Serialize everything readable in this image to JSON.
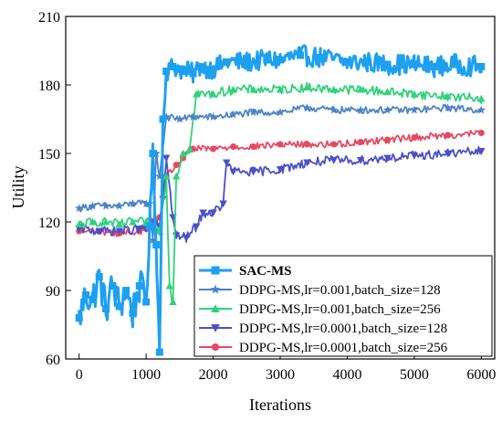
{
  "chart_data": {
    "type": "line",
    "title": "",
    "xlabel": "Iterations",
    "ylabel": "Utility",
    "xlim": [
      -200,
      6200
    ],
    "ylim": [
      60,
      210
    ],
    "xticks": [
      0,
      1000,
      2000,
      3000,
      4000,
      5000,
      6000
    ],
    "yticks": [
      60,
      90,
      120,
      150,
      180,
      210
    ],
    "xtick_labels": [
      "0",
      "1000",
      "2000",
      "3000",
      "4000",
      "5000",
      "6000"
    ],
    "ytick_labels": [
      "60",
      "90",
      "120",
      "150",
      "180",
      "210"
    ],
    "grid": false,
    "legend_position": "bottom-right",
    "series": [
      {
        "name": "SAC-MS",
        "color": "#1ea0f0",
        "marker": "square",
        "points": [
          [
            0,
            78
          ],
          [
            100,
            88
          ],
          [
            200,
            86
          ],
          [
            300,
            96
          ],
          [
            400,
            82
          ],
          [
            500,
            92
          ],
          [
            600,
            83
          ],
          [
            700,
            90
          ],
          [
            800,
            80
          ],
          [
            900,
            92
          ],
          [
            1000,
            85
          ],
          [
            1050,
            118
          ],
          [
            1100,
            150
          ],
          [
            1150,
            110
          ],
          [
            1200,
            63
          ],
          [
            1250,
            165
          ],
          [
            1300,
            186
          ],
          [
            1400,
            188
          ],
          [
            1500,
            187
          ],
          [
            1600,
            186
          ],
          [
            1700,
            185
          ],
          [
            1800,
            188
          ],
          [
            2000,
            187
          ],
          [
            2200,
            190
          ],
          [
            2500,
            190
          ],
          [
            2800,
            191
          ],
          [
            3000,
            191
          ],
          [
            3300,
            193
          ],
          [
            3600,
            192
          ],
          [
            4000,
            190
          ],
          [
            4300,
            190
          ],
          [
            4600,
            189
          ],
          [
            5000,
            189
          ],
          [
            5300,
            188
          ],
          [
            5600,
            189
          ],
          [
            6000,
            188
          ]
        ]
      },
      {
        "name": "DDPG-MS,lr=0.001,batch_size=128",
        "color": "#4b82c8",
        "marker": "star",
        "points": [
          [
            0,
            126
          ],
          [
            200,
            127
          ],
          [
            400,
            127
          ],
          [
            600,
            127
          ],
          [
            800,
            128
          ],
          [
            1000,
            128
          ],
          [
            1050,
            128
          ],
          [
            1100,
            112
          ],
          [
            1150,
            150
          ],
          [
            1200,
            140
          ],
          [
            1300,
            166
          ],
          [
            1500,
            165
          ],
          [
            1700,
            166
          ],
          [
            2000,
            166
          ],
          [
            2300,
            167
          ],
          [
            2600,
            168
          ],
          [
            3000,
            168
          ],
          [
            3400,
            170
          ],
          [
            3800,
            169
          ],
          [
            4200,
            169
          ],
          [
            4600,
            169
          ],
          [
            5000,
            169
          ],
          [
            5500,
            170
          ],
          [
            6000,
            169
          ]
        ]
      },
      {
        "name": "DDPG-MS,lr=0.001,batch_size=256",
        "color": "#2fd27a",
        "marker": "triangle-up",
        "points": [
          [
            0,
            119
          ],
          [
            200,
            120
          ],
          [
            400,
            120
          ],
          [
            600,
            119
          ],
          [
            800,
            120
          ],
          [
            1000,
            120
          ],
          [
            1100,
            118
          ],
          [
            1200,
            116
          ],
          [
            1300,
            140
          ],
          [
            1350,
            92
          ],
          [
            1400,
            85
          ],
          [
            1450,
            140
          ],
          [
            1550,
            150
          ],
          [
            1650,
            152
          ],
          [
            1750,
            176
          ],
          [
            2000,
            176
          ],
          [
            2300,
            178
          ],
          [
            2600,
            178
          ],
          [
            3000,
            178
          ],
          [
            3400,
            179
          ],
          [
            3800,
            178
          ],
          [
            4200,
            178
          ],
          [
            4600,
            177
          ],
          [
            5000,
            176
          ],
          [
            5500,
            175
          ],
          [
            6000,
            174
          ]
        ]
      },
      {
        "name": "DDPG-MS,lr=0.0001,batch_size=128",
        "color": "#4b4fc8",
        "marker": "triangle-down",
        "points": [
          [
            0,
            117
          ],
          [
            300,
            116
          ],
          [
            600,
            116
          ],
          [
            900,
            117
          ],
          [
            1000,
            117
          ],
          [
            1100,
            120
          ],
          [
            1200,
            118
          ],
          [
            1250,
            130
          ],
          [
            1300,
            148
          ],
          [
            1400,
            122
          ],
          [
            1450,
            114
          ],
          [
            1600,
            113
          ],
          [
            1750,
            118
          ],
          [
            1850,
            124
          ],
          [
            2000,
            124
          ],
          [
            2150,
            128
          ],
          [
            2200,
            146
          ],
          [
            2300,
            142
          ],
          [
            2600,
            142
          ],
          [
            3000,
            143
          ],
          [
            3400,
            146
          ],
          [
            3800,
            147
          ],
          [
            4200,
            147
          ],
          [
            4600,
            148
          ],
          [
            5000,
            149
          ],
          [
            5500,
            150
          ],
          [
            6000,
            151
          ]
        ]
      },
      {
        "name": "DDPG-MS,lr=0.0001,batch_size=256",
        "color": "#e84860",
        "marker": "circle",
        "points": [
          [
            0,
            116
          ],
          [
            300,
            116
          ],
          [
            600,
            115
          ],
          [
            900,
            116
          ],
          [
            1000,
            117
          ],
          [
            1100,
            118
          ],
          [
            1200,
            122
          ],
          [
            1300,
            140
          ],
          [
            1450,
            145
          ],
          [
            1550,
            148
          ],
          [
            1700,
            152
          ],
          [
            2000,
            152
          ],
          [
            2300,
            153
          ],
          [
            2600,
            153
          ],
          [
            3000,
            154
          ],
          [
            3400,
            154
          ],
          [
            3800,
            154
          ],
          [
            4200,
            155
          ],
          [
            4600,
            156
          ],
          [
            5000,
            157
          ],
          [
            5500,
            158
          ],
          [
            6000,
            159
          ]
        ]
      }
    ]
  }
}
